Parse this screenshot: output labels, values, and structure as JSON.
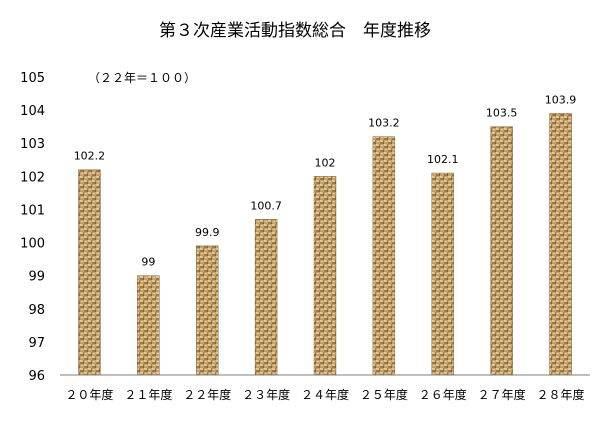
{
  "chart_data": {
    "type": "bar",
    "title": "第３次産業活動指数総合　年度推移",
    "annotation": "（２２年＝１００）",
    "xlabel": "",
    "ylabel": "",
    "categories": [
      "２０年度",
      "２１年度",
      "２２年度",
      "２３年度",
      "２４年度",
      "２５年度",
      "２６年度",
      "２７年度",
      "２８年度"
    ],
    "values": [
      102.2,
      99,
      99.9,
      100.7,
      102,
      103.2,
      102.1,
      103.5,
      103.9
    ],
    "data_labels": [
      "102.2",
      "99",
      "99.9",
      "100.7",
      "102",
      "103.2",
      "102.1",
      "103.5",
      "103.9"
    ],
    "ylim": [
      96,
      105
    ],
    "yticks": [
      "96",
      "97",
      "98",
      "99",
      "100",
      "101",
      "102",
      "103",
      "104",
      "105"
    ],
    "grid": false,
    "legend": "none",
    "bar_fill": "burlap-texture",
    "colors": {
      "bar_base": "#c4a06a",
      "bar_dark": "#6e5027",
      "bar_light": "#e7d2a4",
      "axis": "#7f7f7f",
      "text": "#000000"
    }
  }
}
